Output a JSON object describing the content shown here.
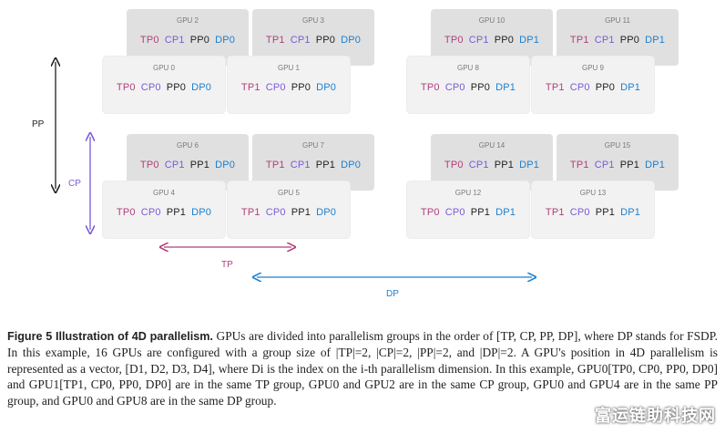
{
  "gpus": {
    "g0": {
      "name": "GPU 0",
      "tp": "TP0",
      "cp": "CP0",
      "pp": "PP0",
      "dp": "DP0"
    },
    "g1": {
      "name": "GPU 1",
      "tp": "TP1",
      "cp": "CP0",
      "pp": "PP0",
      "dp": "DP0"
    },
    "g2": {
      "name": "GPU 2",
      "tp": "TP0",
      "cp": "CP1",
      "pp": "PP0",
      "dp": "DP0"
    },
    "g3": {
      "name": "GPU 3",
      "tp": "TP1",
      "cp": "CP1",
      "pp": "PP0",
      "dp": "DP0"
    },
    "g4": {
      "name": "GPU 4",
      "tp": "TP0",
      "cp": "CP0",
      "pp": "PP1",
      "dp": "DP0"
    },
    "g5": {
      "name": "GPU 5",
      "tp": "TP1",
      "cp": "CP0",
      "pp": "PP1",
      "dp": "DP0"
    },
    "g6": {
      "name": "GPU 6",
      "tp": "TP0",
      "cp": "CP1",
      "pp": "PP1",
      "dp": "DP0"
    },
    "g7": {
      "name": "GPU 7",
      "tp": "TP1",
      "cp": "CP1",
      "pp": "PP1",
      "dp": "DP0"
    },
    "g8": {
      "name": "GPU 8",
      "tp": "TP0",
      "cp": "CP0",
      "pp": "PP0",
      "dp": "DP1"
    },
    "g9": {
      "name": "GPU 9",
      "tp": "TP1",
      "cp": "CP0",
      "pp": "PP0",
      "dp": "DP1"
    },
    "g10": {
      "name": "GPU 10",
      "tp": "TP0",
      "cp": "CP1",
      "pp": "PP0",
      "dp": "DP1"
    },
    "g11": {
      "name": "GPU 11",
      "tp": "TP1",
      "cp": "CP1",
      "pp": "PP0",
      "dp": "DP1"
    },
    "g12": {
      "name": "GPU 12",
      "tp": "TP0",
      "cp": "CP0",
      "pp": "PP1",
      "dp": "DP1"
    },
    "g13": {
      "name": "GPU 13",
      "tp": "TP1",
      "cp": "CP0",
      "pp": "PP1",
      "dp": "DP1"
    },
    "g14": {
      "name": "GPU 14",
      "tp": "TP0",
      "cp": "CP1",
      "pp": "PP1",
      "dp": "DP1"
    },
    "g15": {
      "name": "GPU 15",
      "tp": "TP1",
      "cp": "CP1",
      "pp": "PP1",
      "dp": "DP1"
    }
  },
  "axes": {
    "pp": "PP",
    "cp": "CP",
    "tp": "TP",
    "dp": "DP"
  },
  "colors": {
    "tp": "#b0407a",
    "cp": "#7a5ad8",
    "pp": "#1f1f1f",
    "dp": "#1a7fd0"
  },
  "caption": {
    "label": "Figure 5  Illustration of 4D parallelism.",
    "text": " GPUs are divided into parallelism groups in the order of [TP, CP, PP, DP], where DP stands for FSDP. In this example, 16 GPUs are configured with a group size of |TP|=2, |CP|=2, |PP|=2, and |DP|=2. A GPU's position in 4D parallelism is represented as a vector, [D1, D2, D3, D4], where Di is the index on the i-th parallelism dimension. In this example, GPU0[TP0, CP0, PP0, DP0] and GPU1[TP1, CP0, PP0, DP0] are in the same TP group, GPU0 and GPU2 are in the same CP group, GPU0 and GPU4 are in the same PP group, and GPU0 and GPU8 are in the same DP group."
  },
  "watermark": "富运链助科技网"
}
